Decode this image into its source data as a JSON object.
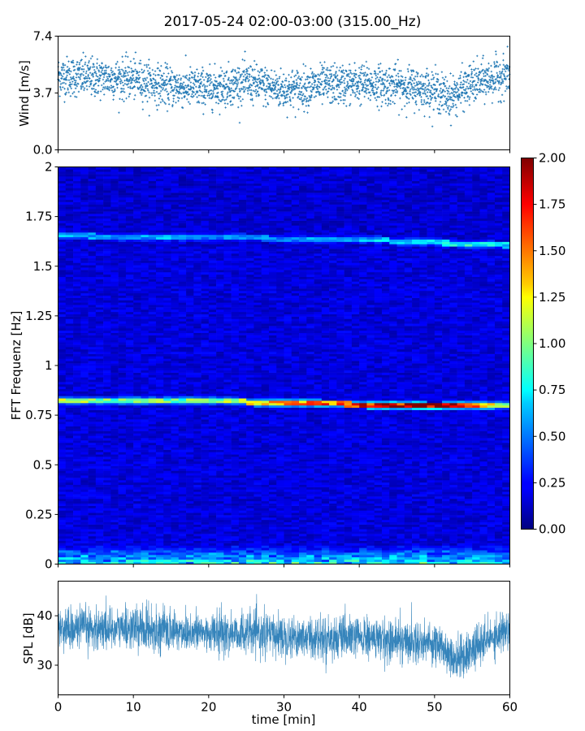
{
  "title": "2017-05-24 02:00-03:00 (315.00_Hz)",
  "chart_data": [
    {
      "type": "scatter",
      "panel": "wind",
      "ylabel": "Wind [m/s]",
      "xlabel": "",
      "xlim": [
        0,
        60
      ],
      "ylim": [
        0,
        7.4
      ],
      "yticks": [
        "0.0",
        "3.7",
        "7.4"
      ],
      "color": "#1f77b4",
      "series_profile": {
        "name": "",
        "x": [
          0,
          5,
          10,
          15,
          20,
          25,
          30,
          35,
          40,
          45,
          50,
          52,
          55,
          60
        ],
        "mean": [
          4.8,
          4.7,
          4.6,
          4.1,
          4.0,
          4.4,
          3.9,
          4.2,
          4.3,
          4.2,
          3.9,
          3.4,
          4.3,
          4.9
        ],
        "spread": 0.85
      }
    },
    {
      "type": "heatmap",
      "panel": "spectrogram",
      "ylabel": "FFT Frequenz [Hz]",
      "xlabel": "",
      "xlim": [
        0,
        60
      ],
      "ylim": [
        0,
        2
      ],
      "yticks": [
        "0",
        "0.25",
        "0.5",
        "0.75",
        "1",
        "1.25",
        "1.5",
        "1.75",
        "2"
      ],
      "colormap": "jet",
      "vmin": 0,
      "vmax": 2,
      "colorbar_ticks": [
        "0.00",
        "0.25",
        "0.50",
        "0.75",
        "1.00",
        "1.25",
        "1.50",
        "1.75",
        "2.00"
      ],
      "features": [
        {
          "kind": "tonal_line",
          "x": [
            0,
            20,
            30,
            40,
            50,
            60
          ],
          "freq": [
            0.82,
            0.825,
            0.81,
            0.805,
            0.795,
            0.8
          ],
          "amplitude": [
            0.9,
            0.8,
            1.3,
            1.6,
            1.9,
            0.9
          ]
        },
        {
          "kind": "tonal_line",
          "x": [
            0,
            20,
            30,
            40,
            50,
            60
          ],
          "freq": [
            1.655,
            1.645,
            1.64,
            1.635,
            1.62,
            1.605
          ],
          "amplitude": [
            0.45,
            0.4,
            0.4,
            0.45,
            0.6,
            0.55
          ]
        },
        {
          "kind": "low_frequency_band",
          "freq_max": 0.1,
          "amplitude": 0.7
        }
      ],
      "background_level": 0.18
    },
    {
      "type": "line",
      "panel": "spl",
      "ylabel": "SPL [dB]",
      "xlabel": "time [min]",
      "xlim": [
        0,
        60
      ],
      "ylim": [
        24,
        47
      ],
      "yticks": [
        "30",
        "40"
      ],
      "xticks": [
        "0",
        "10",
        "20",
        "30",
        "40",
        "50",
        "60"
      ],
      "color": "#1f77b4",
      "series_profile": {
        "name": "",
        "x": [
          0,
          5,
          10,
          15,
          20,
          25,
          30,
          35,
          40,
          45,
          50,
          52,
          53,
          55,
          58,
          60
        ],
        "mean": [
          37.5,
          37.5,
          37.5,
          37,
          36.5,
          36.5,
          36,
          35.5,
          35.5,
          35,
          34.5,
          32.5,
          31,
          33,
          36,
          37.5
        ],
        "spread": 3.5
      }
    }
  ]
}
